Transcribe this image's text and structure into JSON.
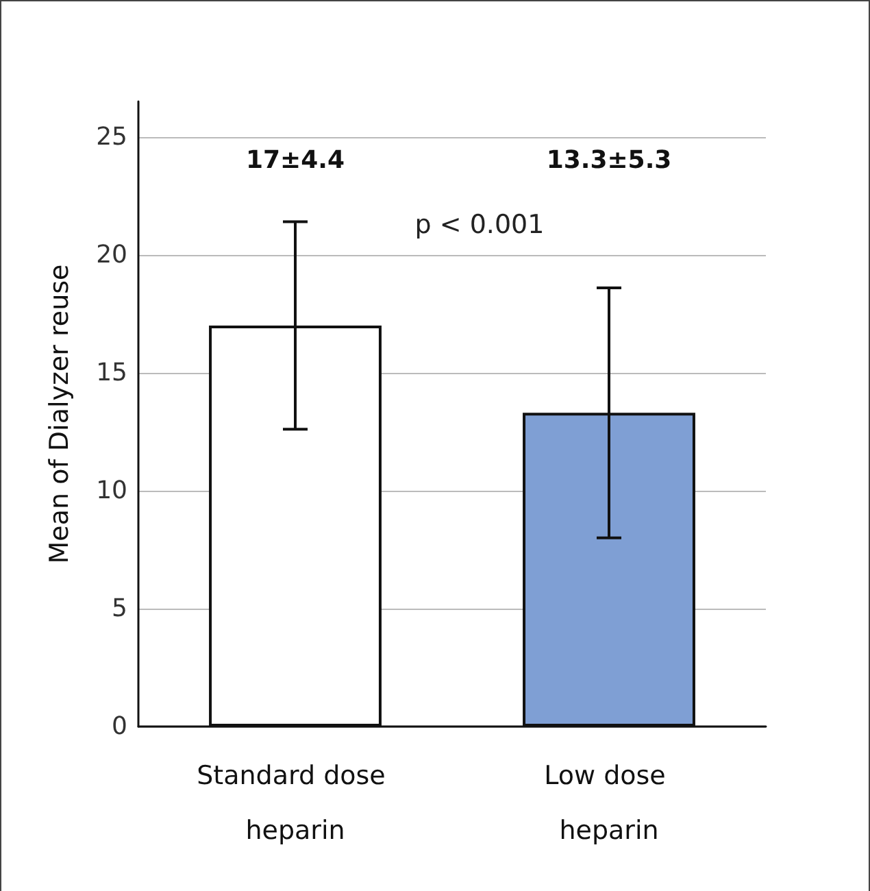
{
  "chart_data": {
    "type": "bar",
    "ylabel": "Mean of Dialyzer reuse",
    "categories": [
      "Standard dose heparin",
      "Low dose heparin"
    ],
    "values": [
      17,
      13.3
    ],
    "colors": [
      "#ffffff",
      "#7f9fd4"
    ],
    "errors": [
      4.4,
      5.3
    ],
    "annotations": [
      "17±4.4",
      "13.3±5.3",
      "p < 0.001"
    ],
    "ylim": [
      0,
      26.5
    ],
    "yticks": [
      0,
      5,
      10,
      15,
      20,
      25
    ],
    "grid": "y"
  }
}
